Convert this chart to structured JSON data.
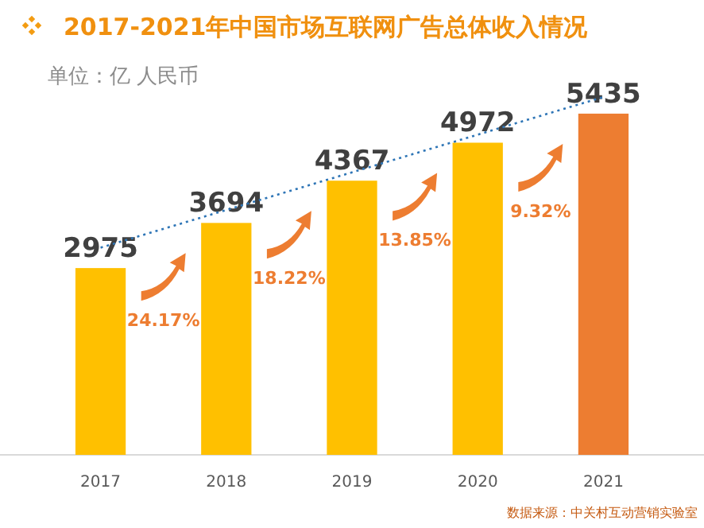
{
  "chart_data": {
    "type": "bar",
    "title": "2017-2021年中国市场互联网广告总体收入情况",
    "subtitle": "单位：亿 人民币",
    "categories": [
      "2017",
      "2018",
      "2019",
      "2020",
      "2021"
    ],
    "series": [
      {
        "values": [
          2975,
          3694,
          4367,
          4972,
          5435
        ],
        "value_labels": [
          "2975",
          "3694",
          "4367",
          "4972",
          "5435"
        ],
        "colors": [
          "#ffc000",
          "#ffc000",
          "#ffc000",
          "#ffc000",
          "#ed7d31"
        ]
      },
      {
        "type": "line",
        "values": [
          3300,
          3900,
          4500,
          5100,
          5700
        ],
        "color": "#2e75b6",
        "line_style": "dotted"
      }
    ],
    "annotations": [
      "24.17%",
      "18.22%",
      "13.85%",
      "9.32%",
      "数据来源：中关村互动营销实验室"
    ]
  }
}
